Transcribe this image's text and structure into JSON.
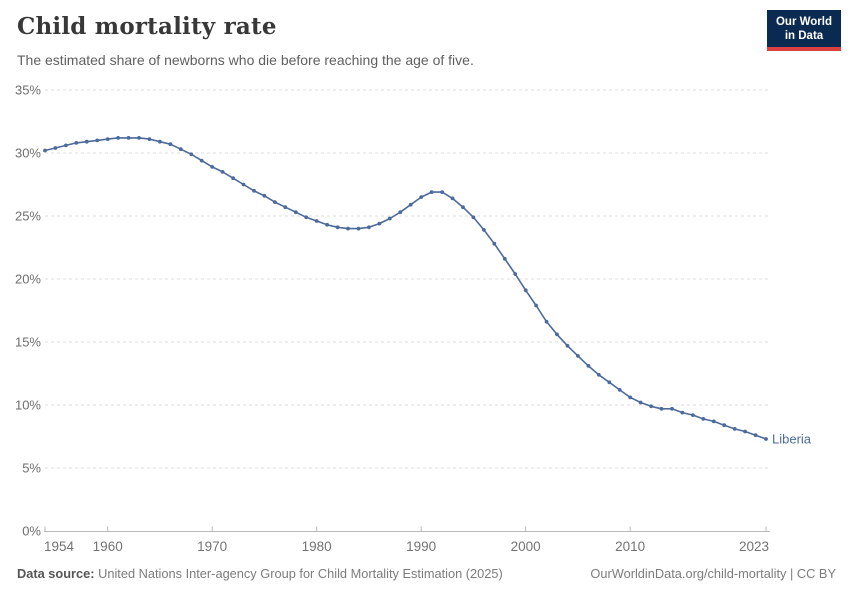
{
  "header": {
    "title": "Child mortality rate",
    "subtitle": "The estimated share of newborns who die before reaching the age of five.",
    "logo": {
      "line1": "Our World",
      "line2": "in Data"
    }
  },
  "footer": {
    "source_label": "Data source:",
    "source_text": " United Nations Inter-agency Group for Child Mortality Estimation (2025)",
    "link_text": "OurWorldinData.org/child-mortality | CC BY"
  },
  "colors": {
    "line": "#4c6a9c",
    "entity_label": "#4c6a9c",
    "grid": "#dcdcdc",
    "axis": "#b8b8b8",
    "y_tick_text": "#6e6e6e",
    "x_tick_text": "#737373",
    "logo_bg": "#0b2a52",
    "logo_red": "#dc3f3f",
    "title_text": "#383838",
    "subtitle_text": "#5f5f5f"
  },
  "chart_data": {
    "type": "line",
    "title": "Child mortality rate",
    "subtitle": "The estimated share of newborns who die before reaching the age of five.",
    "entity": "Liberia",
    "unit": "%",
    "grid": "horizontal-dashed",
    "legend_position": "end-of-line-label",
    "ylim": [
      0,
      35
    ],
    "yticks": [
      0,
      5,
      10,
      15,
      20,
      25,
      30,
      35
    ],
    "ytick_labels": [
      "0%",
      "5%",
      "10%",
      "15%",
      "20%",
      "25%",
      "30%",
      "35%"
    ],
    "xticks": [
      1954,
      1960,
      1970,
      1980,
      1990,
      2000,
      2010,
      2023
    ],
    "x": [
      1954,
      1955,
      1956,
      1957,
      1958,
      1959,
      1960,
      1961,
      1962,
      1963,
      1964,
      1965,
      1966,
      1967,
      1968,
      1969,
      1970,
      1971,
      1972,
      1973,
      1974,
      1975,
      1976,
      1977,
      1978,
      1979,
      1980,
      1981,
      1982,
      1983,
      1984,
      1985,
      1986,
      1987,
      1988,
      1989,
      1990,
      1991,
      1992,
      1993,
      1994,
      1995,
      1996,
      1997,
      1998,
      1999,
      2000,
      2001,
      2002,
      2003,
      2004,
      2005,
      2006,
      2007,
      2008,
      2009,
      2010,
      2011,
      2012,
      2013,
      2014,
      2015,
      2016,
      2017,
      2018,
      2019,
      2020,
      2021,
      2022,
      2023
    ],
    "series": [
      {
        "name": "Liberia",
        "values": [
          30.2,
          30.4,
          30.6,
          30.8,
          30.9,
          31.0,
          31.1,
          31.2,
          31.2,
          31.2,
          31.1,
          30.9,
          30.7,
          30.3,
          29.9,
          29.4,
          28.9,
          28.5,
          28.0,
          27.5,
          27.0,
          26.6,
          26.1,
          25.7,
          25.3,
          24.9,
          24.6,
          24.3,
          24.1,
          24.0,
          24.0,
          24.1,
          24.4,
          24.8,
          25.3,
          25.9,
          26.5,
          26.9,
          26.9,
          26.4,
          25.7,
          24.9,
          23.9,
          22.8,
          21.6,
          20.4,
          19.1,
          17.9,
          16.6,
          15.6,
          14.7,
          13.9,
          13.1,
          12.4,
          11.8,
          11.2,
          10.6,
          10.2,
          9.9,
          9.7,
          9.7,
          9.4,
          9.2,
          8.9,
          8.7,
          8.4,
          8.1,
          7.9,
          7.6,
          7.3
        ]
      }
    ],
    "line_color": "#4c6a9c",
    "marker": "dot"
  }
}
